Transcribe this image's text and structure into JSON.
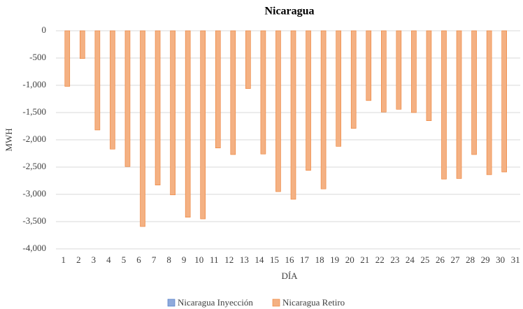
{
  "chart_data": {
    "type": "bar",
    "title": "Nicaragua",
    "x_label": "DÍA",
    "y_label": "MWH",
    "categories": [
      "1",
      "2",
      "3",
      "4",
      "5",
      "6",
      "7",
      "8",
      "9",
      "10",
      "11",
      "12",
      "13",
      "14",
      "15",
      "16",
      "17",
      "18",
      "19",
      "20",
      "21",
      "22",
      "23",
      "24",
      "25",
      "26",
      "27",
      "28",
      "29",
      "30",
      "31"
    ],
    "series": [
      {
        "name": "Nicaragua Inyección",
        "color": "#8faadc",
        "values": [
          0,
          0,
          0,
          0,
          0,
          0,
          0,
          0,
          0,
          0,
          0,
          0,
          0,
          0,
          0,
          0,
          0,
          0,
          0,
          0,
          0,
          0,
          0,
          0,
          0,
          0,
          0,
          0,
          0,
          0,
          null
        ]
      },
      {
        "name": "Nicaragua Retiro",
        "color": "#f4b183",
        "values": [
          -1020,
          -510,
          -1820,
          -2170,
          -2490,
          -3590,
          -2830,
          -3010,
          -3420,
          -3450,
          -2150,
          -2270,
          -1060,
          -2260,
          -2950,
          -3090,
          -2560,
          -2900,
          -2120,
          -1790,
          -1280,
          -1490,
          -1440,
          -1500,
          -1650,
          -2720,
          -2710,
          -2270,
          -2640,
          -2590,
          null
        ]
      }
    ],
    "ylim": [
      -4000,
      0
    ],
    "yticks": [
      0,
      -500,
      {
        "value": -1000,
        "label": "-1,000"
      },
      {
        "value": -1500,
        "label": "-1,500"
      },
      {
        "value": -2000,
        "label": "-2,000"
      },
      {
        "value": -2500,
        "label": "-2,500"
      },
      {
        "value": -3000,
        "label": "-3,000"
      },
      {
        "value": -3500,
        "label": "-3,500"
      },
      {
        "value": -4000,
        "label": "-4,000"
      }
    ],
    "grid": true,
    "legend": "bottom"
  }
}
